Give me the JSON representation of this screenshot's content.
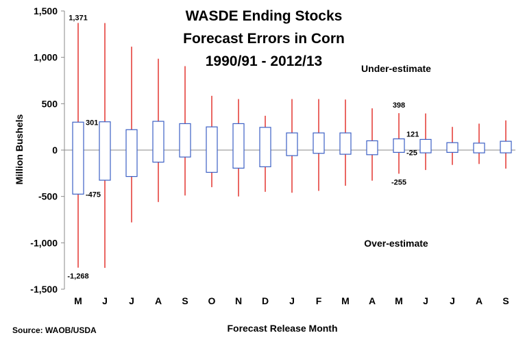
{
  "chart_data": {
    "type": "boxplot",
    "title_lines": [
      "WASDE Ending Stocks",
      "Forecast Errors in Corn",
      "1990/91 - 2012/13"
    ],
    "xlabel": "Forecast Release Month",
    "ylabel": "Million Bushels",
    "ylim": [
      -1500,
      1500
    ],
    "yticks": [
      1500,
      1000,
      500,
      0,
      -500,
      -1000,
      -1500
    ],
    "ytick_labels": [
      "1,500",
      "1,000",
      "500",
      "0",
      "-500",
      "-1,000",
      "-1,500"
    ],
    "categories": [
      "M",
      "J",
      "J",
      "A",
      "S",
      "O",
      "N",
      "D",
      "J",
      "F",
      "M",
      "A",
      "M",
      "J",
      "J",
      "A",
      "S"
    ],
    "boxes": [
      {
        "max": 1371,
        "q3": 301,
        "q1": -475,
        "min": -1268
      },
      {
        "max": 1370,
        "q3": 305,
        "q1": -325,
        "min": -1270
      },
      {
        "max": 1115,
        "q3": 220,
        "q1": -285,
        "min": -780
      },
      {
        "max": 985,
        "q3": 310,
        "q1": -130,
        "min": -560
      },
      {
        "max": 905,
        "q3": 285,
        "q1": -75,
        "min": -490
      },
      {
        "max": 585,
        "q3": 250,
        "q1": -240,
        "min": -400
      },
      {
        "max": 550,
        "q3": 285,
        "q1": -195,
        "min": -500
      },
      {
        "max": 370,
        "q3": 245,
        "q1": -180,
        "min": -450
      },
      {
        "max": 550,
        "q3": 185,
        "q1": -60,
        "min": -460
      },
      {
        "max": 550,
        "q3": 185,
        "q1": -35,
        "min": -440
      },
      {
        "max": 545,
        "q3": 185,
        "q1": -45,
        "min": -385
      },
      {
        "max": 450,
        "q3": 100,
        "q1": -50,
        "min": -330
      },
      {
        "max": 398,
        "q3": 121,
        "q1": -25,
        "min": -255
      },
      {
        "max": 395,
        "q3": 115,
        "q1": -30,
        "min": -215
      },
      {
        "max": 250,
        "q3": 80,
        "q1": -25,
        "min": -160
      },
      {
        "max": 285,
        "q3": 75,
        "q1": -30,
        "min": -150
      },
      {
        "max": 320,
        "q3": 95,
        "q1": -30,
        "min": -200
      }
    ],
    "annotations": [
      {
        "text": "1,371",
        "value": 1371,
        "box": 0
      },
      {
        "text": "301",
        "value": 301,
        "box": 0
      },
      {
        "text": "-475",
        "value": -475,
        "box": 0
      },
      {
        "text": "-1,268",
        "value": -1268,
        "box": 0
      },
      {
        "text": "398",
        "value": 398,
        "box": 12
      },
      {
        "text": "121",
        "value": 121,
        "box": 12
      },
      {
        "text": "-25",
        "value": -25,
        "box": 12
      },
      {
        "text": "-255",
        "value": -255,
        "box": 12
      }
    ],
    "region_labels": [
      "Under-estimate",
      "Over-estimate"
    ],
    "grid": false,
    "colors": {
      "whisker": "#e3342f",
      "box": "#3b5fc4",
      "axis": "#888888"
    }
  },
  "source": "Source: WAOB/USDA"
}
